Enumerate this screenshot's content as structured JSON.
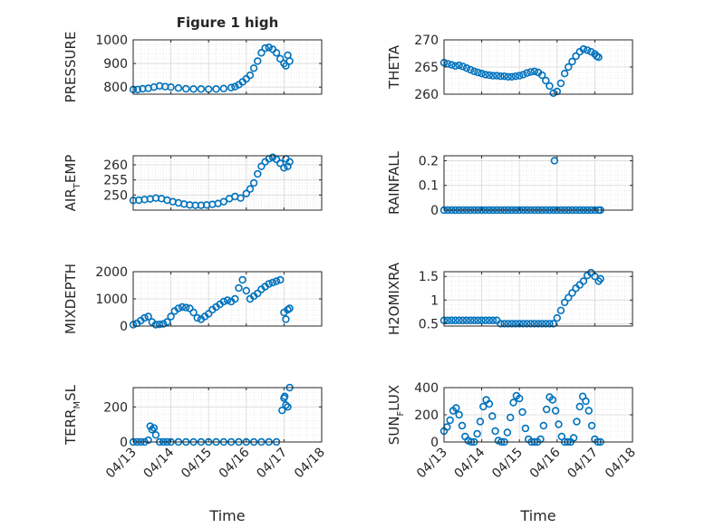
{
  "figure": {
    "title": "Figure 1 high",
    "xlabel": "Time",
    "marker_color": "#0072bd",
    "x_tick_labels": [
      "04/13",
      "04/14",
      "04/15",
      "04/16",
      "04/17",
      "04/18"
    ]
  },
  "chart_data": [
    {
      "type": "scatter",
      "panel": "pressure",
      "ylabel_parts": [
        "PRESSURE"
      ],
      "ylim": [
        770,
        1000
      ],
      "yticks": [
        800,
        900,
        1000
      ],
      "xlim": [
        0,
        5
      ],
      "grid": true,
      "x": [
        0.0,
        0.12,
        0.25,
        0.4,
        0.55,
        0.7,
        0.85,
        1.0,
        1.2,
        1.4,
        1.6,
        1.8,
        2.0,
        2.2,
        2.4,
        2.6,
        2.7,
        2.8,
        2.9,
        3.0,
        3.1,
        3.2,
        3.3,
        3.4,
        3.5,
        3.6,
        3.7,
        3.8,
        3.9,
        4.0,
        4.05,
        4.1,
        4.15
      ],
      "y": [
        790,
        790,
        793,
        795,
        800,
        805,
        802,
        800,
        796,
        793,
        792,
        792,
        791,
        792,
        794,
        798,
        802,
        810,
        822,
        835,
        850,
        880,
        910,
        945,
        965,
        968,
        960,
        945,
        920,
        900,
        890,
        935,
        910
      ]
    },
    {
      "type": "scatter",
      "panel": "theta",
      "ylabel_parts": [
        "THETA"
      ],
      "ylim": [
        260,
        270
      ],
      "yticks": [
        260,
        265,
        270
      ],
      "xlim": [
        0,
        5
      ],
      "grid": true,
      "x": [
        0.0,
        0.1,
        0.2,
        0.3,
        0.4,
        0.5,
        0.6,
        0.7,
        0.8,
        0.9,
        1.0,
        1.1,
        1.2,
        1.3,
        1.4,
        1.5,
        1.6,
        1.7,
        1.8,
        1.9,
        2.0,
        2.1,
        2.2,
        2.3,
        2.4,
        2.5,
        2.6,
        2.7,
        2.8,
        2.9,
        3.0,
        3.1,
        3.2,
        3.3,
        3.4,
        3.5,
        3.6,
        3.7,
        3.8,
        3.9,
        4.0,
        4.05,
        4.1
      ],
      "y": [
        265.8,
        265.6,
        265.4,
        265.2,
        265.3,
        265.1,
        264.8,
        264.5,
        264.2,
        264.0,
        263.8,
        263.6,
        263.5,
        263.4,
        263.4,
        263.3,
        263.3,
        263.2,
        263.2,
        263.3,
        263.4,
        263.6,
        263.9,
        264.1,
        264.2,
        264.0,
        263.5,
        262.5,
        261.5,
        260.2,
        260.5,
        262.0,
        263.8,
        265.0,
        266.0,
        267.0,
        267.8,
        268.3,
        268.1,
        267.8,
        267.4,
        267.0,
        266.8
      ]
    },
    {
      "type": "scatter",
      "panel": "air_temp",
      "ylabel_parts": [
        "AIR",
        "T",
        "EMP"
      ],
      "ylim": [
        245,
        263
      ],
      "yticks": [
        250,
        255,
        260
      ],
      "xlim": [
        0,
        5
      ],
      "grid": true,
      "x": [
        0.0,
        0.15,
        0.3,
        0.45,
        0.6,
        0.75,
        0.9,
        1.05,
        1.2,
        1.35,
        1.5,
        1.65,
        1.8,
        1.95,
        2.1,
        2.25,
        2.4,
        2.55,
        2.7,
        2.85,
        3.0,
        3.1,
        3.2,
        3.3,
        3.4,
        3.5,
        3.6,
        3.7,
        3.8,
        3.9,
        4.0,
        4.05,
        4.1,
        4.15
      ],
      "y": [
        248.2,
        248.3,
        248.5,
        248.7,
        249.0,
        248.8,
        248.3,
        247.8,
        247.4,
        247.0,
        246.7,
        246.6,
        246.6,
        246.7,
        246.9,
        247.2,
        247.8,
        248.8,
        249.5,
        249.0,
        250.5,
        252.0,
        254.0,
        257.0,
        259.5,
        261.0,
        262.0,
        262.5,
        261.8,
        260.5,
        259.0,
        262.0,
        259.5,
        261.0
      ]
    },
    {
      "type": "scatter",
      "panel": "rainfall",
      "ylabel_parts": [
        "RAINFALL"
      ],
      "ylim": [
        0,
        0.22
      ],
      "yticks": [
        0,
        0.1,
        0.2
      ],
      "xlim": [
        0,
        5
      ],
      "grid": true,
      "x": [
        0.0,
        0.1,
        0.2,
        0.3,
        0.4,
        0.5,
        0.6,
        0.7,
        0.8,
        0.9,
        1.0,
        1.1,
        1.2,
        1.3,
        1.4,
        1.5,
        1.6,
        1.7,
        1.8,
        1.9,
        2.0,
        2.1,
        2.2,
        2.3,
        2.4,
        2.5,
        2.6,
        2.7,
        2.8,
        2.9,
        3.0,
        3.1,
        3.2,
        3.3,
        3.4,
        3.5,
        3.6,
        3.7,
        3.8,
        3.9,
        4.0,
        4.1,
        4.15,
        2.93
      ],
      "y": [
        0,
        0,
        0,
        0,
        0,
        0,
        0,
        0,
        0,
        0,
        0,
        0,
        0,
        0,
        0,
        0,
        0,
        0,
        0,
        0,
        0,
        0,
        0,
        0,
        0,
        0,
        0,
        0,
        0,
        0,
        0,
        0,
        0,
        0,
        0,
        0,
        0,
        0,
        0,
        0,
        0,
        0,
        0,
        0.2
      ]
    },
    {
      "type": "scatter",
      "panel": "mixdepth",
      "ylabel_parts": [
        "MIXDEPTH"
      ],
      "ylim": [
        0,
        2000
      ],
      "yticks": [
        0,
        1000,
        2000
      ],
      "xlim": [
        0,
        5
      ],
      "grid": true,
      "x": [
        0.0,
        0.1,
        0.2,
        0.3,
        0.4,
        0.5,
        0.6,
        0.7,
        0.8,
        0.9,
        1.0,
        1.1,
        1.2,
        1.3,
        1.4,
        1.5,
        1.6,
        1.7,
        1.8,
        1.9,
        2.0,
        2.1,
        2.2,
        2.3,
        2.4,
        2.5,
        2.6,
        2.7,
        2.8,
        2.9,
        3.0,
        3.1,
        3.2,
        3.3,
        3.4,
        3.5,
        3.6,
        3.7,
        3.8,
        3.9,
        4.0,
        4.05,
        4.1,
        4.15
      ],
      "y": [
        50,
        100,
        200,
        300,
        350,
        150,
        50,
        60,
        80,
        150,
        350,
        550,
        650,
        700,
        680,
        650,
        500,
        300,
        250,
        350,
        450,
        600,
        700,
        800,
        900,
        950,
        900,
        1000,
        1400,
        1700,
        1300,
        1000,
        1100,
        1200,
        1350,
        1450,
        1550,
        1600,
        1650,
        1700,
        500,
        250,
        600,
        650
      ]
    },
    {
      "type": "scatter",
      "panel": "h2omixra",
      "ylabel_parts": [
        "H2OMIXRA"
      ],
      "ylim": [
        0.45,
        1.6
      ],
      "yticks": [
        0.5,
        1,
        1.5
      ],
      "xlim": [
        0,
        5
      ],
      "grid": true,
      "x": [
        0.0,
        0.1,
        0.2,
        0.3,
        0.4,
        0.5,
        0.6,
        0.7,
        0.8,
        0.9,
        1.0,
        1.1,
        1.2,
        1.3,
        1.4,
        1.5,
        1.6,
        1.7,
        1.8,
        1.9,
        2.0,
        2.1,
        2.2,
        2.3,
        2.4,
        2.5,
        2.6,
        2.7,
        2.8,
        2.9,
        3.0,
        3.1,
        3.2,
        3.3,
        3.4,
        3.5,
        3.6,
        3.7,
        3.8,
        3.9,
        4.0,
        4.1,
        4.15
      ],
      "y": [
        0.57,
        0.57,
        0.57,
        0.57,
        0.57,
        0.57,
        0.57,
        0.57,
        0.57,
        0.57,
        0.57,
        0.57,
        0.57,
        0.57,
        0.57,
        0.5,
        0.5,
        0.5,
        0.5,
        0.5,
        0.5,
        0.5,
        0.5,
        0.5,
        0.5,
        0.5,
        0.5,
        0.5,
        0.5,
        0.5,
        0.62,
        0.78,
        0.95,
        1.05,
        1.15,
        1.25,
        1.32,
        1.4,
        1.52,
        1.58,
        1.5,
        1.4,
        1.45
      ]
    },
    {
      "type": "scatter",
      "panel": "terr_msl",
      "ylabel_parts": [
        "TERR",
        "M",
        "SL"
      ],
      "ylim": [
        0,
        310
      ],
      "yticks": [
        0,
        200
      ],
      "xlim": [
        0,
        5
      ],
      "grid": true,
      "x": [
        0.0,
        0.1,
        0.2,
        0.3,
        0.4,
        0.45,
        0.5,
        0.55,
        0.6,
        0.7,
        0.8,
        0.9,
        1.0,
        1.2,
        1.4,
        1.6,
        1.8,
        2.0,
        2.2,
        2.4,
        2.6,
        2.8,
        3.0,
        3.2,
        3.4,
        3.6,
        3.8,
        3.95,
        4.0,
        4.02,
        4.05,
        4.1,
        4.15
      ],
      "y": [
        0,
        0,
        0,
        0,
        10,
        90,
        70,
        80,
        40,
        0,
        0,
        0,
        0,
        0,
        0,
        0,
        0,
        0,
        0,
        0,
        0,
        0,
        0,
        0,
        0,
        0,
        0,
        180,
        250,
        260,
        210,
        200,
        310
      ]
    },
    {
      "type": "scatter",
      "panel": "sun_flux",
      "ylabel_parts": [
        "SUN",
        "F",
        "LUX"
      ],
      "ylim": [
        0,
        400
      ],
      "yticks": [
        0,
        200,
        400
      ],
      "xlim": [
        0,
        5
      ],
      "grid": true,
      "x": [
        0.0,
        0.08,
        0.16,
        0.24,
        0.32,
        0.4,
        0.48,
        0.56,
        0.64,
        0.72,
        0.8,
        0.88,
        0.96,
        1.04,
        1.12,
        1.2,
        1.28,
        1.36,
        1.44,
        1.52,
        1.6,
        1.68,
        1.76,
        1.84,
        1.92,
        2.0,
        2.08,
        2.16,
        2.24,
        2.32,
        2.4,
        2.48,
        2.56,
        2.64,
        2.72,
        2.8,
        2.88,
        2.96,
        3.04,
        3.12,
        3.2,
        3.28,
        3.36,
        3.44,
        3.52,
        3.6,
        3.68,
        3.76,
        3.84,
        3.92,
        4.0,
        4.08,
        4.15
      ],
      "y": [
        80,
        110,
        160,
        230,
        250,
        200,
        120,
        40,
        10,
        0,
        0,
        60,
        150,
        260,
        310,
        280,
        190,
        80,
        10,
        0,
        0,
        70,
        180,
        290,
        340,
        320,
        220,
        100,
        20,
        0,
        0,
        0,
        20,
        120,
        240,
        330,
        310,
        230,
        130,
        40,
        0,
        0,
        0,
        30,
        150,
        260,
        335,
        300,
        230,
        120,
        20,
        0,
        0
      ]
    }
  ]
}
